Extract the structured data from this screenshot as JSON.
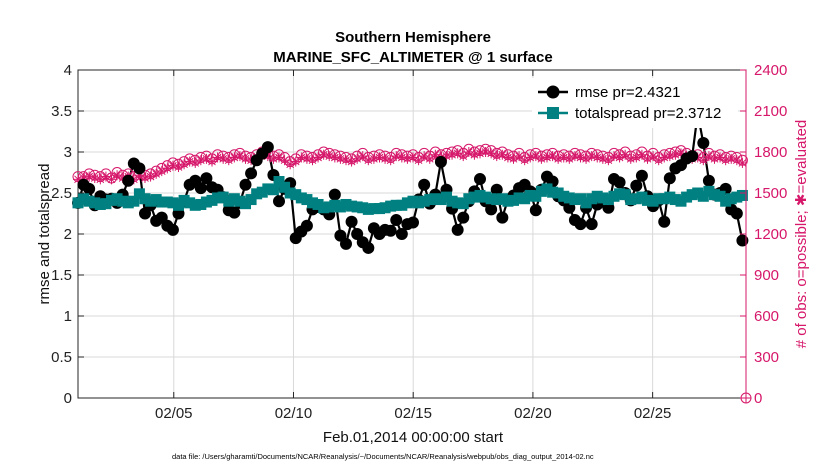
{
  "colors": {
    "rmse": "#000000",
    "spread": "#008080",
    "obs": "#d6176a",
    "grid": "#d9d9d9",
    "axis": "#262626"
  },
  "chart_data": {
    "type": "line",
    "title": "Southern Hemisphere",
    "subtitle": "MARINE_SFC_ALTIMETER @ 1 surface",
    "xlabel": "Feb.01,2014 00:00:00 start",
    "ylabel": "rmse and totalspread",
    "ylabel_right": "# of obs: o=possible; ✱=evaluated",
    "footer": "data file: /Users/gharamti/Documents/NCAR/Reanalysis/~/Documents/NCAR/Reanalysis/webpub/obs_diag_output_2014-02.nc",
    "xlim": [
      1,
      28.9
    ],
    "ylim": [
      0,
      4
    ],
    "ylim_right": [
      0,
      2400
    ],
    "x_ticks": [
      5,
      10,
      15,
      20,
      25
    ],
    "x_tick_labels": [
      "02/05",
      "02/10",
      "02/15",
      "02/20",
      "02/25"
    ],
    "y_ticks": [
      0,
      0.5,
      1,
      1.5,
      2,
      2.5,
      3,
      3.5,
      4
    ],
    "y_tick_labels": [
      "0",
      "0.5",
      "1",
      "1.5",
      "2",
      "2.5",
      "3",
      "3.5",
      "4"
    ],
    "y_ticks_right": [
      0,
      300,
      600,
      900,
      1200,
      1500,
      1800,
      2100,
      2400
    ],
    "y_tick_labels_right": [
      "0",
      "300",
      "600",
      "900",
      "1200",
      "1500",
      "1800",
      "2100",
      "2400"
    ],
    "grid": true,
    "legend_position": "top-right",
    "series": [
      {
        "name": "rmse pr=2.4321",
        "marker": "circle",
        "values": [
          2.38,
          2.6,
          2.55,
          2.35,
          2.46,
          2.42,
          2.43,
          2.38,
          2.48,
          2.65,
          2.86,
          2.8,
          2.25,
          2.35,
          2.16,
          2.2,
          2.1,
          2.05,
          2.25,
          2.4,
          2.6,
          2.65,
          2.56,
          2.68,
          2.57,
          2.54,
          2.45,
          2.29,
          2.26,
          2.38,
          2.6,
          2.74,
          2.9,
          2.98,
          3.06,
          2.72,
          2.4,
          2.55,
          2.62,
          1.95,
          2.03,
          2.1,
          2.3,
          2.33,
          2.3,
          2.24,
          2.48,
          1.98,
          1.88,
          2.15,
          2.0,
          1.9,
          1.83,
          2.07,
          2.0,
          2.05,
          2.04,
          2.17,
          2.0,
          2.12,
          2.14,
          2.42,
          2.6,
          2.37,
          2.48,
          2.88,
          2.54,
          2.31,
          2.05,
          2.2,
          2.4,
          2.52,
          2.67,
          2.4,
          2.3,
          2.54,
          2.2,
          2.42,
          2.47,
          2.56,
          2.6,
          2.52,
          2.29,
          2.54,
          2.7,
          2.64,
          2.46,
          2.41,
          2.32,
          2.17,
          2.12,
          2.32,
          2.12,
          2.36,
          2.4,
          2.32,
          2.67,
          2.63,
          2.5,
          2.41,
          2.59,
          2.71,
          2.46,
          2.34,
          2.41,
          2.15,
          2.68,
          2.8,
          2.84,
          2.92,
          2.95,
          3.47,
          3.11,
          2.65,
          2.48,
          2.5,
          2.55,
          2.3,
          2.25,
          1.92
        ]
      },
      {
        "name": "totalspread pr=2.3712",
        "marker": "square",
        "values": [
          2.38,
          2.43,
          2.4,
          2.38,
          2.36,
          2.37,
          2.41,
          2.43,
          2.4,
          2.38,
          2.4,
          2.49,
          2.43,
          2.4,
          2.42,
          2.39,
          2.39,
          2.38,
          2.35,
          2.41,
          2.38,
          2.35,
          2.36,
          2.39,
          2.41,
          2.44,
          2.45,
          2.4,
          2.43,
          2.4,
          2.37,
          2.42,
          2.49,
          2.51,
          2.55,
          2.54,
          2.64,
          2.57,
          2.5,
          2.48,
          2.44,
          2.42,
          2.38,
          2.36,
          2.32,
          2.33,
          2.35,
          2.33,
          2.36,
          2.34,
          2.33,
          2.32,
          2.3,
          2.31,
          2.31,
          2.32,
          2.34,
          2.35,
          2.35,
          2.38,
          2.4,
          2.38,
          2.4,
          2.42,
          2.43,
          2.42,
          2.45,
          2.4,
          2.38,
          2.37,
          2.43,
          2.45,
          2.47,
          2.45,
          2.43,
          2.42,
          2.43,
          2.4,
          2.41,
          2.44,
          2.43,
          2.47,
          2.46,
          2.52,
          2.55,
          2.51,
          2.5,
          2.46,
          2.44,
          2.42,
          2.43,
          2.38,
          2.43,
          2.46,
          2.44,
          2.42,
          2.46,
          2.49,
          2.48,
          2.42,
          2.43,
          2.45,
          2.41,
          2.4,
          2.43,
          2.43,
          2.45,
          2.42,
          2.4,
          2.45,
          2.48,
          2.5,
          2.46,
          2.52,
          2.48,
          2.46,
          2.4,
          2.43,
          2.45,
          2.47
        ]
      },
      {
        "name": "possible",
        "axis": "right",
        "marker": "open-circle",
        "values": [
          1620,
          1620,
          1640,
          1630,
          1620,
          1640,
          1610,
          1650,
          1630,
          1640,
          1620,
          1650,
          1630,
          1640,
          1660,
          1680,
          1700,
          1720,
          1710,
          1730,
          1750,
          1740,
          1760,
          1770,
          1750,
          1780,
          1770,
          1760,
          1780,
          1790,
          1770,
          1760,
          1780,
          1800,
          1790,
          1770,
          1780,
          1760,
          1730,
          1750,
          1780,
          1770,
          1760,
          1780,
          1800,
          1790,
          1780,
          1770,
          1760,
          1750,
          1770,
          1790,
          1760,
          1770,
          1780,
          1770,
          1760,
          1790,
          1780,
          1770,
          1780,
          1760,
          1790,
          1770,
          1800,
          1780,
          1790,
          1800,
          1810,
          1790,
          1820,
          1800,
          1810,
          1820,
          1810,
          1790,
          1800,
          1780,
          1770,
          1790,
          1760,
          1780,
          1790,
          1770,
          1780,
          1790,
          1770,
          1780,
          1770,
          1790,
          1780,
          1770,
          1790,
          1780,
          1770,
          1760,
          1790,
          1780,
          1800,
          1770,
          1780,
          1800,
          1770,
          1790,
          1760,
          1780,
          1790,
          1800,
          1810,
          1790,
          1770,
          1780,
          1760,
          1790,
          1770,
          1780,
          1760,
          1770,
          1760,
          1740
        ]
      },
      {
        "name": "evaluated",
        "axis": "right",
        "marker": "asterisk",
        "values": [
          1600,
          1610,
          1620,
          1610,
          1600,
          1620,
          1600,
          1630,
          1610,
          1620,
          1600,
          1630,
          1610,
          1620,
          1640,
          1660,
          1680,
          1700,
          1690,
          1710,
          1730,
          1720,
          1740,
          1750,
          1730,
          1760,
          1750,
          1740,
          1760,
          1770,
          1750,
          1740,
          1760,
          1780,
          1770,
          1750,
          1760,
          1740,
          1710,
          1730,
          1760,
          1750,
          1740,
          1760,
          1780,
          1770,
          1760,
          1750,
          1740,
          1730,
          1750,
          1770,
          1740,
          1750,
          1760,
          1750,
          1740,
          1770,
          1760,
          1750,
          1760,
          1740,
          1770,
          1750,
          1780,
          1760,
          1770,
          1780,
          1790,
          1770,
          1800,
          1780,
          1790,
          1800,
          1790,
          1770,
          1780,
          1760,
          1750,
          1770,
          1740,
          1760,
          1770,
          1750,
          1760,
          1770,
          1750,
          1760,
          1750,
          1770,
          1760,
          1750,
          1770,
          1760,
          1750,
          1740,
          1770,
          1760,
          1780,
          1750,
          1760,
          1780,
          1750,
          1770,
          1740,
          1760,
          1770,
          1780,
          1790,
          1770,
          1750,
          1760,
          1740,
          1770,
          1750,
          1760,
          1740,
          1750,
          1740,
          1720
        ]
      }
    ]
  }
}
